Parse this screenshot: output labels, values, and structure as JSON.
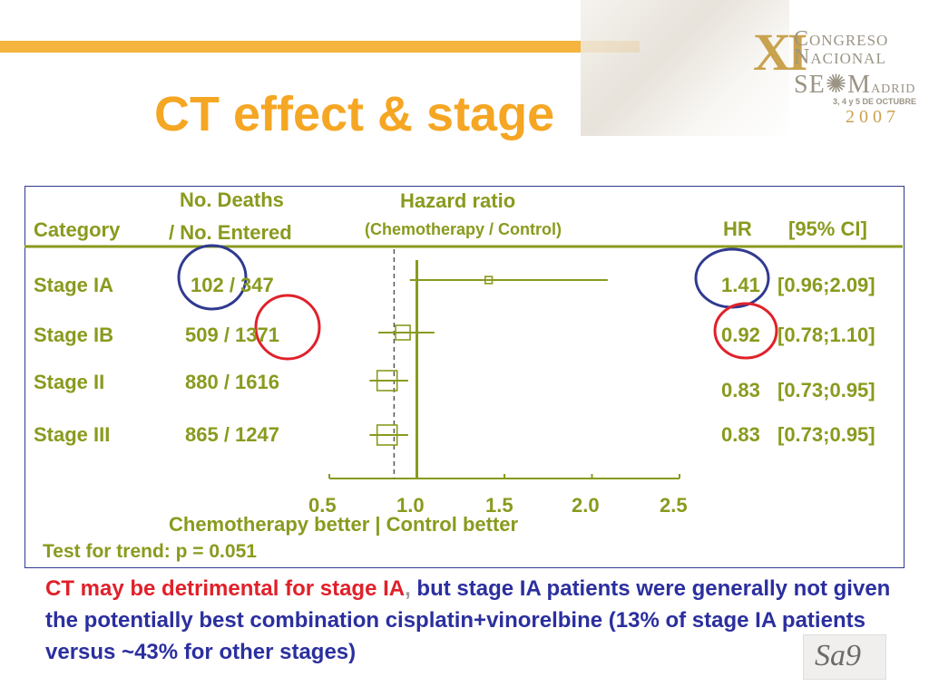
{
  "logo": {
    "roman": "XI",
    "line1": "ONGRESO",
    "line2": "ACIONAL",
    "line3": "SE",
    "line3b": "M",
    "line3c": "ADRID",
    "dates": "3, 4 y 5 DE OCTUBRE",
    "year": "2007",
    "corner_mark": "Sa9"
  },
  "slide": {
    "title": "CT effect & stage"
  },
  "colors": {
    "accent": "#f5a623",
    "label": "#8a9a1e",
    "red": "#e0212a",
    "blue": "#2b2f9e"
  },
  "chart_data": {
    "type": "forest",
    "columns": {
      "category": "Category",
      "deaths_line1": "No. Deaths",
      "deaths_line2": "/ No. Entered",
      "hr_title": "Hazard ratio",
      "hr_subtitle": "(Chemotherapy / Control)",
      "hr": "HR",
      "ci": "[95% CI]"
    },
    "rows": [
      {
        "label": "Stage IA",
        "deaths": "102 / 347",
        "hr": 1.41,
        "ci_low": 0.96,
        "ci_high": 2.09,
        "hr_text": "1.41",
        "ci_text": "[0.96;2.09]",
        "weight": 0.05
      },
      {
        "label": "Stage IB",
        "deaths": "509 / 1371",
        "hr": 0.92,
        "ci_low": 0.78,
        "ci_high": 1.1,
        "hr_text": "0.92",
        "ci_text": "[0.78;1.10]",
        "weight": 0.6
      },
      {
        "label": "Stage II",
        "deaths": "880 / 1616",
        "hr": 0.83,
        "ci_low": 0.73,
        "ci_high": 0.95,
        "hr_text": "0.83",
        "ci_text": "[0.73;0.95]",
        "weight": 1.0
      },
      {
        "label": "Stage III",
        "deaths": "865 / 1247",
        "hr": 0.83,
        "ci_low": 0.73,
        "ci_high": 0.95,
        "hr_text": "0.83",
        "ci_text": "[0.73;0.95]",
        "weight": 1.0
      }
    ],
    "x_axis": {
      "min": 0.5,
      "max": 2.5,
      "ticks": [
        "0.5",
        "1.0",
        "1.5",
        "2.0",
        "2.5"
      ]
    },
    "reference_line": 1.0,
    "overall_line": 0.87,
    "axis_label": "Chemotherapy better | Control better",
    "trend_test": "Test for trend: p = 0.051"
  },
  "note": {
    "part1": "CT may be detrimental for stage IA",
    "comma": ",",
    "part2": " but stage IA patients were generally not given the potentially best combination cisplatin+vinorelbine (13% of stage IA patients versus ~43% for other stages)"
  }
}
